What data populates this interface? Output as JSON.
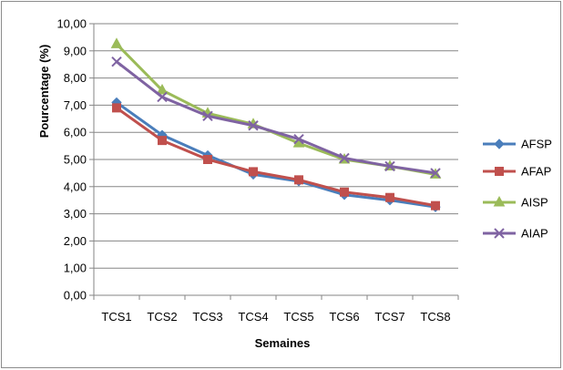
{
  "chart_data": {
    "type": "line",
    "title": "",
    "xlabel": "Semaines",
    "ylabel": "Pourcentage (%)",
    "categories": [
      "TCS1",
      "TCS2",
      "TCS3",
      "TCS4",
      "TCS5",
      "TCS6",
      "TCS7",
      "TCS8"
    ],
    "ylim": [
      0,
      10
    ],
    "yticks": [
      "0,00",
      "1,00",
      "2,00",
      "3,00",
      "4,00",
      "5,00",
      "6,00",
      "7,00",
      "8,00",
      "9,00",
      "10,00"
    ],
    "grid": true,
    "legend_position": "right",
    "series": [
      {
        "name": "AFSP",
        "color": "#4a7ebb",
        "marker": "diamond",
        "values": [
          7.1,
          5.9,
          5.15,
          4.45,
          4.2,
          3.7,
          3.5,
          3.25
        ]
      },
      {
        "name": "AFAP",
        "color": "#c0504d",
        "marker": "square",
        "values": [
          6.9,
          5.7,
          5.0,
          4.55,
          4.25,
          3.8,
          3.6,
          3.3
        ]
      },
      {
        "name": "AISP",
        "color": "#9bbb59",
        "marker": "triangle",
        "values": [
          9.25,
          7.55,
          6.7,
          6.3,
          5.6,
          5.0,
          4.75,
          4.45
        ]
      },
      {
        "name": "AIAP",
        "color": "#7f63a2",
        "marker": "x",
        "values": [
          8.6,
          7.3,
          6.6,
          6.25,
          5.75,
          5.05,
          4.75,
          4.5
        ]
      }
    ]
  }
}
